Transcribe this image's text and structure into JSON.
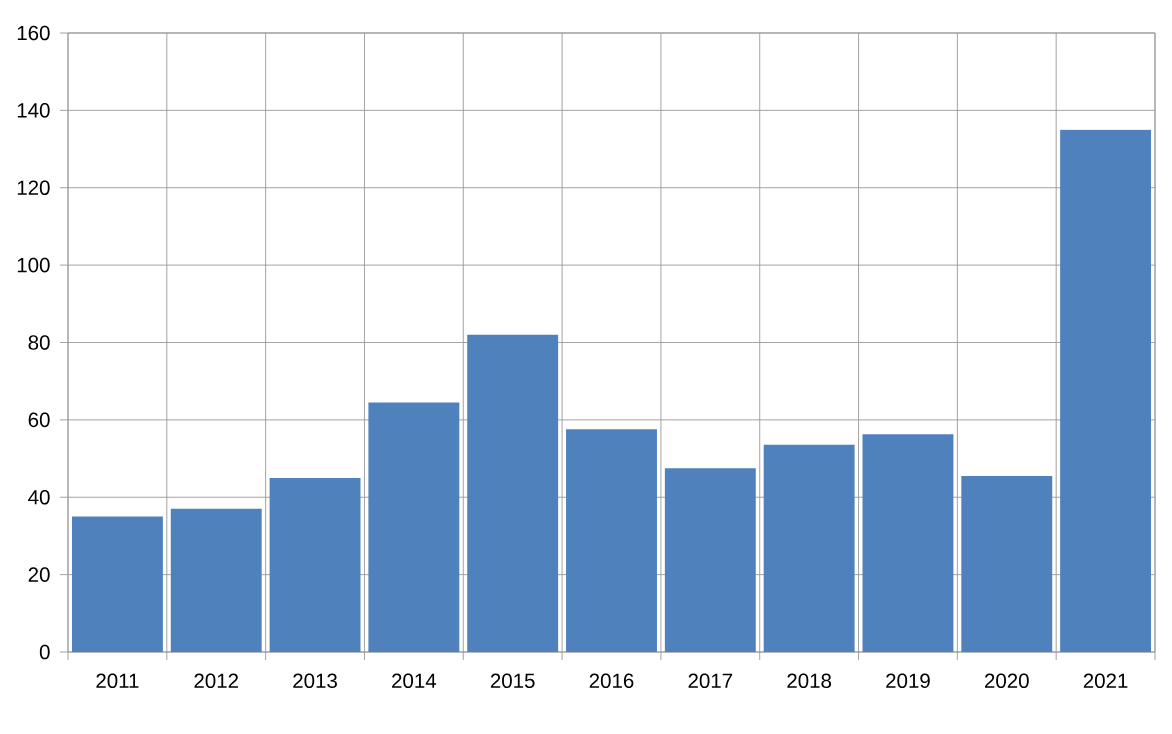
{
  "chart_data": {
    "type": "bar",
    "categories": [
      "2011",
      "2012",
      "2013",
      "2014",
      "2015",
      "2016",
      "2017",
      "2018",
      "2019",
      "2020",
      "2021"
    ],
    "values": [
      35,
      37,
      45,
      64.5,
      82,
      57.6,
      47.5,
      53.6,
      56.3,
      45.5,
      135
    ],
    "color": "#4f81bd",
    "ylim": [
      0,
      160
    ],
    "yticks": [
      0,
      20,
      40,
      60,
      80,
      100,
      120,
      140,
      160
    ],
    "grid": true
  }
}
